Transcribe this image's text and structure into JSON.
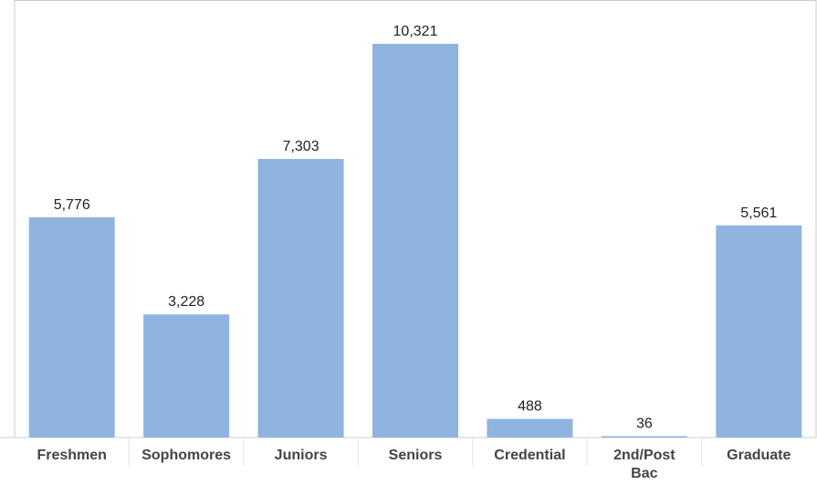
{
  "chart_data": {
    "type": "bar",
    "categories": [
      "Freshmen",
      "Sophomores",
      "Juniors",
      "Seniors",
      "Credential",
      "2nd/Post Bac",
      "Graduate"
    ],
    "category_lines": [
      [
        "Freshmen"
      ],
      [
        "Sophomores"
      ],
      [
        "Juniors"
      ],
      [
        "Seniors"
      ],
      [
        "Credential"
      ],
      [
        "2nd/Post",
        "Bac"
      ],
      [
        "Graduate"
      ]
    ],
    "values": [
      5776,
      3228,
      7303,
      10321,
      488,
      36,
      5561
    ],
    "value_labels": [
      "5,776",
      "3,228",
      "7,303",
      "10,321",
      "488",
      "36",
      "5,561"
    ],
    "title": "",
    "xlabel": "",
    "ylabel": "",
    "ylim": [
      0,
      10321
    ],
    "grid": false,
    "legend": "none",
    "bar_color": "#8FB4E0",
    "axis_color": "#CCCCCC"
  }
}
